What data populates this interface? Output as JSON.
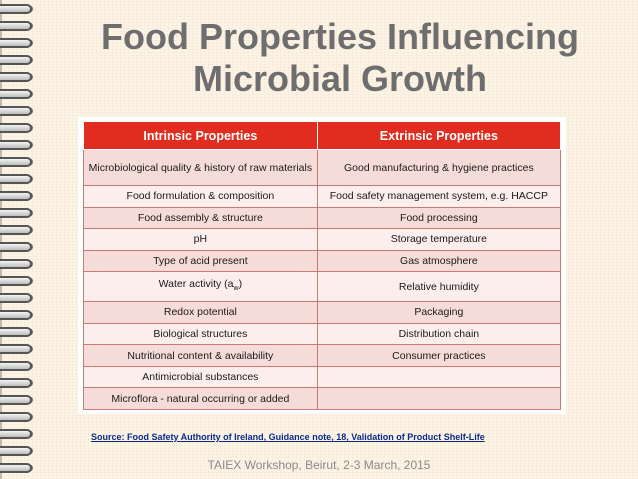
{
  "title_line1": "Food Properties Influencing",
  "title_line2": "Microbial Growth",
  "table": {
    "headers": [
      "Intrinsic Properties",
      "Extrinsic Properties"
    ],
    "rows": [
      [
        "Microbiological quality & history of raw materials",
        "Good manufacturing & hygiene practices"
      ],
      [
        "Food formulation & composition",
        "Food safety management system, e.g. HACCP"
      ],
      [
        "Food assembly & structure",
        "Food processing"
      ],
      [
        "pH",
        "Storage temperature"
      ],
      [
        "Type of acid present",
        "Gas atmosphere"
      ],
      [
        "Water activity (a",
        "Relative humidity"
      ],
      [
        "Redox potential",
        "Packaging"
      ],
      [
        "Biological structures",
        "Distribution chain"
      ],
      [
        "Nutritional content & availability",
        "Consumer practices"
      ],
      [
        "Antimicrobial substances",
        ""
      ],
      [
        "Microflora - natural occurring or added",
        ""
      ]
    ],
    "water_activity_subscript": "w",
    "water_activity_close": ")"
  },
  "source": "Source: Food Safety Authority of Ireland, Guidance note, 18, Validation of Product Shelf-Life",
  "footer": "TAIEX Workshop, Beirut, 2-3 March, 2015",
  "colors": {
    "header_red": "#e02d1f",
    "row_pink": "#f6dcd9",
    "title_gray": "#6e6e6e",
    "source_blue": "#0a2a8c"
  }
}
